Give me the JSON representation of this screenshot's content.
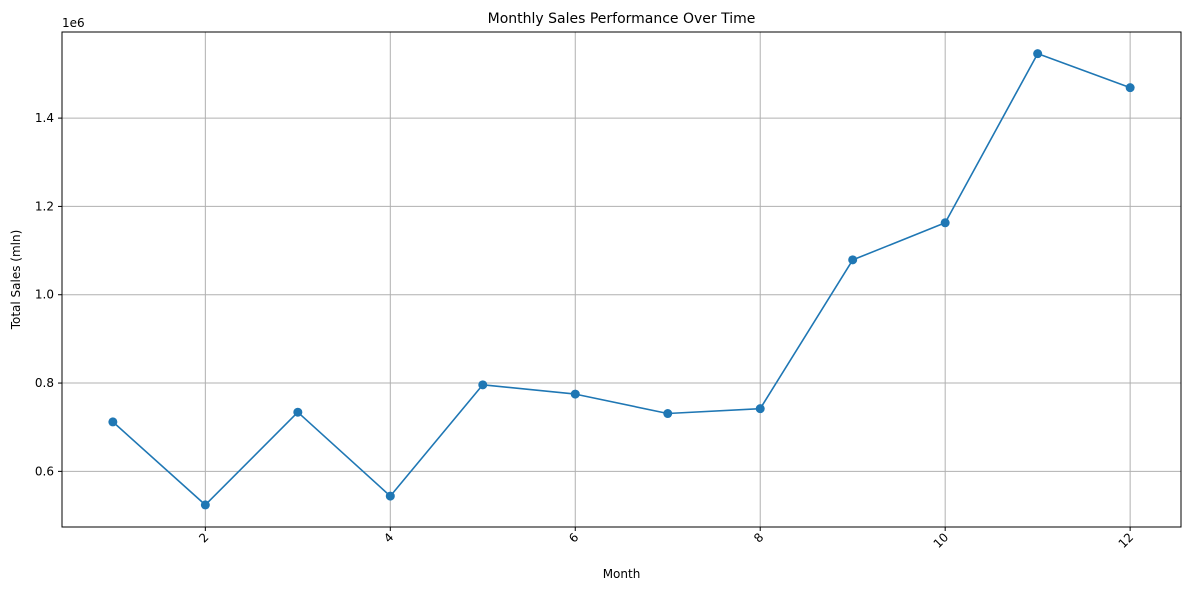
{
  "chart_data": {
    "type": "line",
    "title": "Monthly Sales Performance Over Time",
    "xlabel": "Month",
    "ylabel": "Total Sales (mln)",
    "y_offset_label": "1e6",
    "xlim": [
      0.45,
      12.55
    ],
    "ylim": [
      474000,
      1595000
    ],
    "x_ticks": [
      2,
      4,
      6,
      8,
      10,
      12
    ],
    "x_tick_labels": [
      "2",
      "4",
      "6",
      "8",
      "10",
      "12"
    ],
    "x_tick_rotation": 45,
    "y_ticks": [
      600000,
      800000,
      1000000,
      1200000,
      1400000
    ],
    "y_tick_labels": [
      "0.6",
      "0.8",
      "1.0",
      "1.2",
      "1.4"
    ],
    "grid": true,
    "marker": "circle",
    "series": [
      {
        "color": "#1f77b4",
        "x": [
          1,
          2,
          3,
          4,
          5,
          6,
          7,
          8,
          9,
          10,
          11,
          12
        ],
        "values": [
          712000,
          524000,
          734000,
          544000,
          796000,
          775000,
          731000,
          742000,
          1079000,
          1163000,
          1546000,
          1469000
        ]
      }
    ]
  }
}
